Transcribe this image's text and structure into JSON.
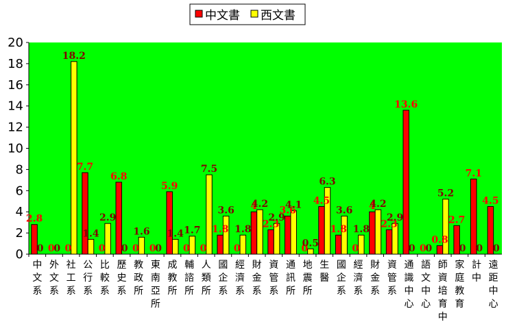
{
  "chart_data": {
    "type": "bar",
    "categories": [
      "中文系",
      "外文系",
      "社工系",
      "公行系",
      "比較系",
      "歷史系",
      "教政所",
      "東南亞所",
      "成教所",
      "輔諮所",
      "人類所",
      "國企系",
      "經濟系",
      "財金系",
      "資管系",
      "通訊所",
      "地震所",
      "生醫",
      "國企系",
      "經濟系",
      "財金系",
      "資管系",
      "通識中心",
      "語文中心",
      "師資培育中",
      "家庭教育",
      "計中",
      "遠距中心"
    ],
    "series": [
      {
        "name": "中文書",
        "color": "#FF0000",
        "label_color": "#FF0000",
        "values": [
          2.8,
          0,
          0,
          7.7,
          0,
          6.8,
          0,
          0,
          5.9,
          0,
          0,
          1.8,
          0,
          4,
          2.3,
          3.6,
          0,
          4.5,
          1.8,
          0,
          4,
          2.3,
          13.6,
          0,
          0.8,
          2.7,
          7.1,
          4.5
        ]
      },
      {
        "name": "西文書",
        "color": "#FFFF00",
        "label_color": "#800000",
        "values": [
          0,
          0,
          18.2,
          1.4,
          2.9,
          0,
          1.6,
          0,
          1.4,
          1.7,
          7.5,
          3.6,
          1.8,
          4.2,
          2.9,
          4.1,
          0.5,
          6.3,
          3.6,
          1.8,
          4.2,
          2.9,
          0,
          0,
          5.2,
          0,
          0,
          0
        ]
      }
    ],
    "ylim": [
      0,
      20
    ],
    "yticks": [
      "0",
      "2",
      "4",
      "6",
      "8",
      "10",
      "12",
      "14",
      "16",
      "18",
      "20"
    ],
    "grid": false,
    "plot_background": "#00FF00",
    "legend_position": "top-center",
    "value_labels": {
      "s0": [
        "2.8",
        "0",
        "0",
        "7.7",
        "0",
        "6.8",
        "0",
        "0",
        "5.9",
        "0",
        "0",
        "1.8",
        "0",
        "4",
        "2.3",
        "3.6",
        "0",
        "4.5",
        "1.8",
        "0",
        "4",
        "2.3",
        "13.6",
        "0",
        "0.8",
        "2.7",
        "7.1",
        "4.5"
      ],
      "s1": [
        "0",
        "0",
        "18.2",
        "1.4",
        "2.9",
        "0",
        "1.6",
        "0",
        "1.4",
        "1.7",
        "7.5",
        "3.6",
        "1.8",
        "4.2",
        "2.9",
        "4.1",
        "0.5",
        "6.3",
        "3.6",
        "1.8",
        "4.2",
        "2.9",
        "0",
        "0",
        "5.2",
        "0",
        "0",
        "0"
      ]
    }
  }
}
